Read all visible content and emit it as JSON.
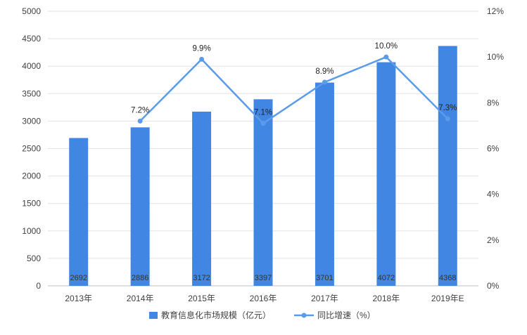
{
  "chart_data": {
    "type": "bar",
    "categories": [
      "2013年",
      "2014年",
      "2015年",
      "2016年",
      "2017年",
      "2018年",
      "2019年E"
    ],
    "series": [
      {
        "name": "教育信息化市场规模（亿元）",
        "type": "bar",
        "axis": "left",
        "values": [
          2692,
          2886,
          3172,
          3397,
          3701,
          4072,
          4368
        ],
        "data_labels": [
          "2692",
          "2886",
          "3172",
          "3397",
          "3701",
          "4072",
          "4368"
        ]
      },
      {
        "name": "同比增速（%）",
        "type": "line",
        "axis": "right",
        "values": [
          null,
          7.2,
          9.9,
          7.1,
          8.9,
          10.0,
          7.3
        ],
        "data_labels": [
          "",
          "7.2%",
          "9.9%",
          "7.1%",
          "8.9%",
          "10.0%",
          "7.3%"
        ]
      }
    ],
    "y_left": {
      "ylim": [
        0,
        5000
      ],
      "ticks": [
        "0",
        "500",
        "1000",
        "1500",
        "2000",
        "2500",
        "3000",
        "3500",
        "4000",
        "4500",
        "5000"
      ]
    },
    "y_right": {
      "ylim": [
        0,
        12
      ],
      "ticks": [
        "0%",
        "2%",
        "4%",
        "6%",
        "8%",
        "10%",
        "12%"
      ]
    },
    "grid": true,
    "legend_position": "bottom-center",
    "colors": {
      "bar": "#4286E4",
      "line": "#5B9BEA",
      "grid": "#E3E3E3",
      "axis_text": "#404040"
    }
  }
}
